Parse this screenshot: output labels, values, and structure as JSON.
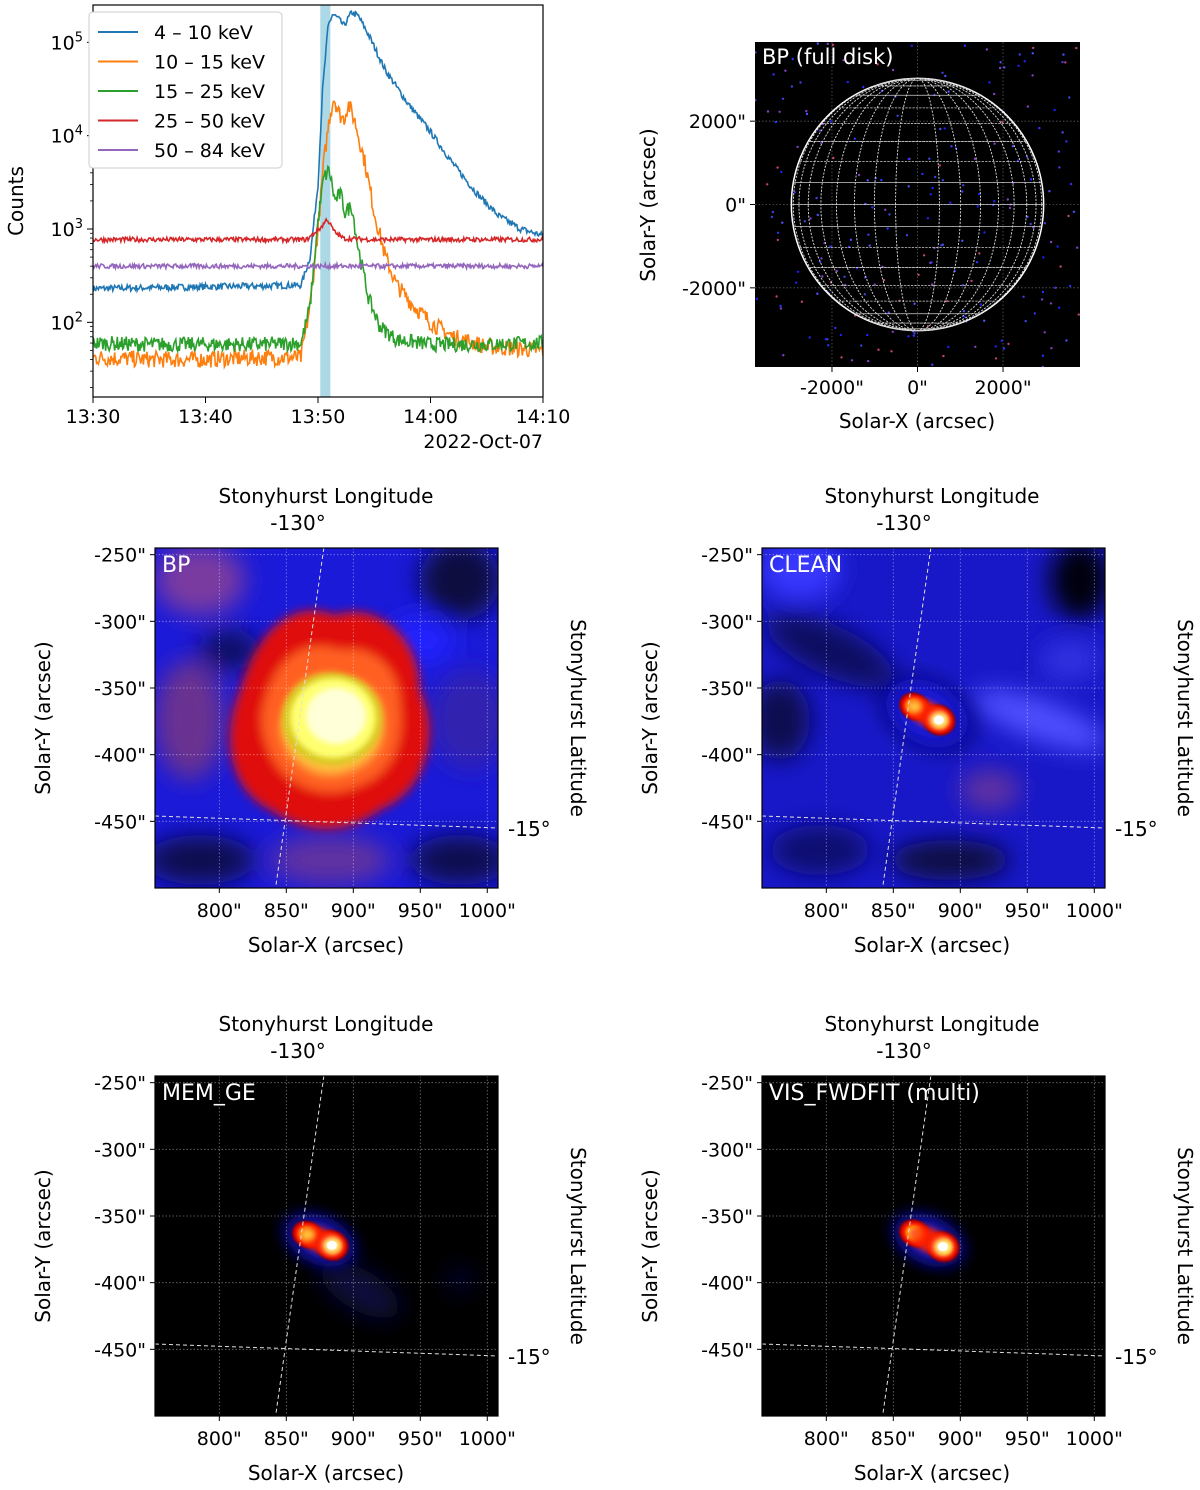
{
  "chart_data": [
    {
      "type": "line",
      "panel": "lightcurve",
      "title": "",
      "ylabel": "Counts",
      "xlabel": "",
      "x_ticks": [
        "13:30",
        "13:40",
        "13:50",
        "14:00",
        "14:10"
      ],
      "x_date_label": "2022-Oct-07",
      "y_ticks": [
        "10^2",
        "10^3",
        "10^4",
        "10^5"
      ],
      "yscale": "log",
      "xlim_minutes": [
        0,
        40
      ],
      "ylim_log10": [
        1.2,
        5.4
      ],
      "highlight_interval_minutes": [
        20.2,
        21.1
      ],
      "highlight_color": "#add8e6",
      "legend_position": "top-left",
      "series": [
        {
          "name": "4  – 10 keV",
          "color": "#1f77b4",
          "points": [
            [
              0,
              230
            ],
            [
              5,
              235
            ],
            [
              10,
              240
            ],
            [
              15,
              245
            ],
            [
              18.5,
              250
            ],
            [
              19.3,
              500
            ],
            [
              20,
              3000
            ],
            [
              20.4,
              30000
            ],
            [
              20.9,
              150000
            ],
            [
              21.3,
              200000
            ],
            [
              21.8,
              180000
            ],
            [
              22.3,
              150000
            ],
            [
              23,
              210000
            ],
            [
              23.6,
              190000
            ],
            [
              24.5,
              120000
            ],
            [
              26,
              50000
            ],
            [
              28,
              22000
            ],
            [
              30,
              11000
            ],
            [
              32,
              5000
            ],
            [
              34,
              2500
            ],
            [
              36,
              1400
            ],
            [
              38,
              1000
            ],
            [
              40,
              850
            ]
          ]
        },
        {
          "name": "10  – 15 keV",
          "color": "#ff7f0e",
          "points": [
            [
              0,
              42
            ],
            [
              5,
              40
            ],
            [
              10,
              40
            ],
            [
              15,
              42
            ],
            [
              18.5,
              42
            ],
            [
              19.3,
              150
            ],
            [
              20,
              1000
            ],
            [
              20.5,
              5000
            ],
            [
              21,
              15000
            ],
            [
              21.4,
              26000
            ],
            [
              21.9,
              17000
            ],
            [
              22.3,
              15000
            ],
            [
              22.7,
              22000
            ],
            [
              23.3,
              14000
            ],
            [
              24.2,
              5000
            ],
            [
              25,
              1500
            ],
            [
              26,
              500
            ],
            [
              27,
              250
            ],
            [
              28.5,
              150
            ],
            [
              30,
              100
            ],
            [
              32,
              70
            ],
            [
              35,
              55
            ],
            [
              38,
              52
            ],
            [
              40,
              50
            ]
          ]
        },
        {
          "name": "15  – 25 keV",
          "color": "#2ca02c",
          "points": [
            [
              0,
              60
            ],
            [
              5,
              58
            ],
            [
              10,
              58
            ],
            [
              15,
              58
            ],
            [
              18.5,
              60
            ],
            [
              19.3,
              150
            ],
            [
              20,
              1200
            ],
            [
              20.5,
              3500
            ],
            [
              21,
              4300
            ],
            [
              21.5,
              2000
            ],
            [
              22,
              2400
            ],
            [
              22.4,
              1500
            ],
            [
              23,
              1800
            ],
            [
              23.5,
              700
            ],
            [
              24.5,
              180
            ],
            [
              25.5,
              90
            ],
            [
              27,
              65
            ],
            [
              30,
              58
            ],
            [
              35,
              58
            ],
            [
              40,
              60
            ]
          ]
        },
        {
          "name": "25  – 50 keV",
          "color": "#d62728",
          "points": [
            [
              0,
              770
            ],
            [
              5,
              770
            ],
            [
              10,
              770
            ],
            [
              15,
              770
            ],
            [
              19,
              770
            ],
            [
              20.3,
              1050
            ],
            [
              20.8,
              1280
            ],
            [
              21.5,
              920
            ],
            [
              22.3,
              790
            ],
            [
              25,
              770
            ],
            [
              30,
              770
            ],
            [
              35,
              770
            ],
            [
              40,
              770
            ]
          ]
        },
        {
          "name": "50  – 84 keV",
          "color": "#9467bd",
          "points": [
            [
              0,
              400
            ],
            [
              5,
              400
            ],
            [
              10,
              400
            ],
            [
              15,
              400
            ],
            [
              20,
              400
            ],
            [
              25,
              400
            ],
            [
              30,
              400
            ],
            [
              35,
              400
            ],
            [
              40,
              400
            ]
          ]
        }
      ]
    },
    {
      "type": "heatmap",
      "panel": "fulldisk",
      "label": "BP (full disk)",
      "xlabel": "Solar-X (arcsec)",
      "ylabel": "Solar-Y (arcsec)",
      "xlim": [
        -3800,
        3800
      ],
      "ylim": [
        -3900,
        3900
      ],
      "x_ticks": [
        {
          "v": -2000,
          "t": "-2000\""
        },
        {
          "v": 0,
          "t": "0\""
        },
        {
          "v": 2000,
          "t": "2000\""
        }
      ],
      "y_ticks": [
        {
          "v": 2000,
          "t": "2000\""
        },
        {
          "v": 0,
          "t": "0\""
        },
        {
          "v": -2000,
          "t": "-2000\""
        }
      ],
      "disk_radius_arcsec": 2950
    },
    {
      "type": "heatmap",
      "panel": "bp",
      "label": "BP",
      "xlabel": "Solar-X (arcsec)",
      "ylabel": "Solar-Y (arcsec)",
      "top_axis_label": "Stonyhurst Longitude",
      "top_tick": "-130°",
      "right_axis_label": "Stonyhurst Latitude",
      "right_tick": "-15°",
      "xlim": [
        752,
        1008
      ],
      "ylim": [
        -500,
        -245
      ],
      "x_ticks": [
        {
          "v": 800,
          "t": "800\""
        },
        {
          "v": 850,
          "t": "850\""
        },
        {
          "v": 900,
          "t": "900\""
        },
        {
          "v": 950,
          "t": "950\""
        },
        {
          "v": 1000,
          "t": "1000\""
        }
      ],
      "y_ticks": [
        {
          "v": -250,
          "t": "-250\""
        },
        {
          "v": -300,
          "t": "-300\""
        },
        {
          "v": -350,
          "t": "-350\""
        },
        {
          "v": -400,
          "t": "-400\""
        },
        {
          "v": -450,
          "t": "-450\""
        }
      ],
      "source_centers": [
        [
          876,
          -372
        ]
      ]
    },
    {
      "type": "heatmap",
      "panel": "clean",
      "label": "CLEAN",
      "xlabel": "Solar-X (arcsec)",
      "ylabel": "Solar-Y (arcsec)",
      "top_axis_label": "Stonyhurst Longitude",
      "top_tick": "-130°",
      "right_axis_label": "Stonyhurst Latitude",
      "right_tick": "-15°",
      "xlim": [
        752,
        1008
      ],
      "ylim": [
        -500,
        -245
      ],
      "x_ticks": [
        {
          "v": 800,
          "t": "800\""
        },
        {
          "v": 850,
          "t": "850\""
        },
        {
          "v": 900,
          "t": "900\""
        },
        {
          "v": 950,
          "t": "950\""
        },
        {
          "v": 1000,
          "t": "1000\""
        }
      ],
      "y_ticks": [
        {
          "v": -250,
          "t": "-250\""
        },
        {
          "v": -300,
          "t": "-300\""
        },
        {
          "v": -350,
          "t": "-350\""
        },
        {
          "v": -400,
          "t": "-400\""
        },
        {
          "v": -450,
          "t": "-450\""
        }
      ],
      "source_centers": [
        [
          866,
          -364
        ],
        [
          884,
          -374
        ]
      ]
    },
    {
      "type": "heatmap",
      "panel": "mem",
      "label": "MEM_GE",
      "xlabel": "Solar-X (arcsec)",
      "ylabel": "Solar-Y (arcsec)",
      "top_axis_label": "Stonyhurst Longitude",
      "top_tick": "-130°",
      "right_axis_label": "Stonyhurst Latitude",
      "right_tick": "-15°",
      "xlim": [
        752,
        1008
      ],
      "ylim": [
        -500,
        -245
      ],
      "x_ticks": [
        {
          "v": 800,
          "t": "800\""
        },
        {
          "v": 850,
          "t": "850\""
        },
        {
          "v": 900,
          "t": "900\""
        },
        {
          "v": 950,
          "t": "950\""
        },
        {
          "v": 1000,
          "t": "1000\""
        }
      ],
      "y_ticks": [
        {
          "v": -250,
          "t": "-250\""
        },
        {
          "v": -300,
          "t": "-300\""
        },
        {
          "v": -350,
          "t": "-350\""
        },
        {
          "v": -400,
          "t": "-400\""
        },
        {
          "v": -450,
          "t": "-450\""
        }
      ],
      "source_centers": [
        [
          866,
          -364
        ],
        [
          884,
          -372
        ]
      ]
    },
    {
      "type": "heatmap",
      "panel": "vis",
      "label": "VIS_FWDFIT (multi)",
      "xlabel": "Solar-X (arcsec)",
      "ylabel": "Solar-Y (arcsec)",
      "top_axis_label": "Stonyhurst Longitude",
      "top_tick": "-130°",
      "right_axis_label": "Stonyhurst Latitude",
      "right_tick": "-15°",
      "xlim": [
        752,
        1008
      ],
      "ylim": [
        -500,
        -245
      ],
      "x_ticks": [
        {
          "v": 800,
          "t": "800\""
        },
        {
          "v": 850,
          "t": "850\""
        },
        {
          "v": 900,
          "t": "900\""
        },
        {
          "v": 950,
          "t": "950\""
        },
        {
          "v": 1000,
          "t": "1000\""
        }
      ],
      "y_ticks": [
        {
          "v": -250,
          "t": "-250\""
        },
        {
          "v": -300,
          "t": "-300\""
        },
        {
          "v": -350,
          "t": "-350\""
        },
        {
          "v": -400,
          "t": "-400\""
        },
        {
          "v": -450,
          "t": "-450\""
        }
      ],
      "source_centers": [
        [
          866,
          -363
        ],
        [
          887,
          -373
        ]
      ]
    }
  ]
}
